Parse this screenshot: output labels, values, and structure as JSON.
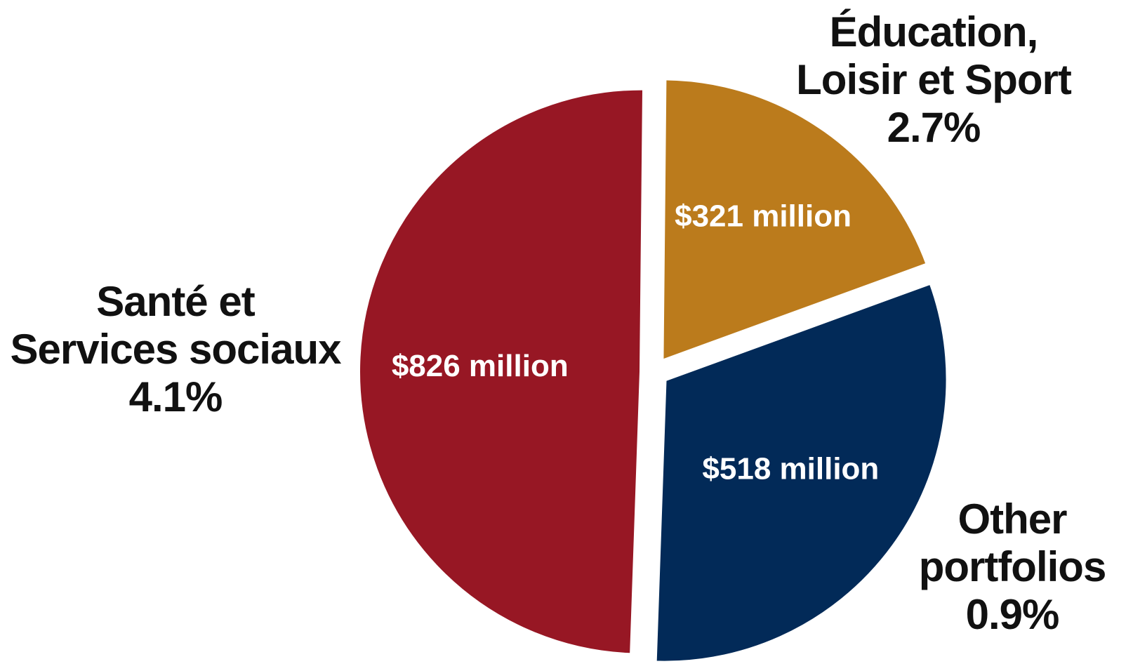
{
  "chart_data": {
    "type": "pie",
    "title": "",
    "slices": [
      {
        "label_lines": [
          "Éducation,",
          "Loisir et Sport"
        ],
        "percent_label": "2.7%",
        "value": 321,
        "value_label": "$321 million",
        "color": "#BB7B1C"
      },
      {
        "label_lines": [
          "Other",
          "portfolios"
        ],
        "percent_label": "0.9%",
        "value": 518,
        "value_label": "$518 million",
        "color": "#022A58"
      },
      {
        "label_lines": [
          "Santé et",
          "Services sociaux"
        ],
        "percent_label": "4.1%",
        "value": 826,
        "value_label": "$826 million",
        "color": "#971724"
      }
    ],
    "legend": "none",
    "value_label_color": "#FFFFFF"
  }
}
